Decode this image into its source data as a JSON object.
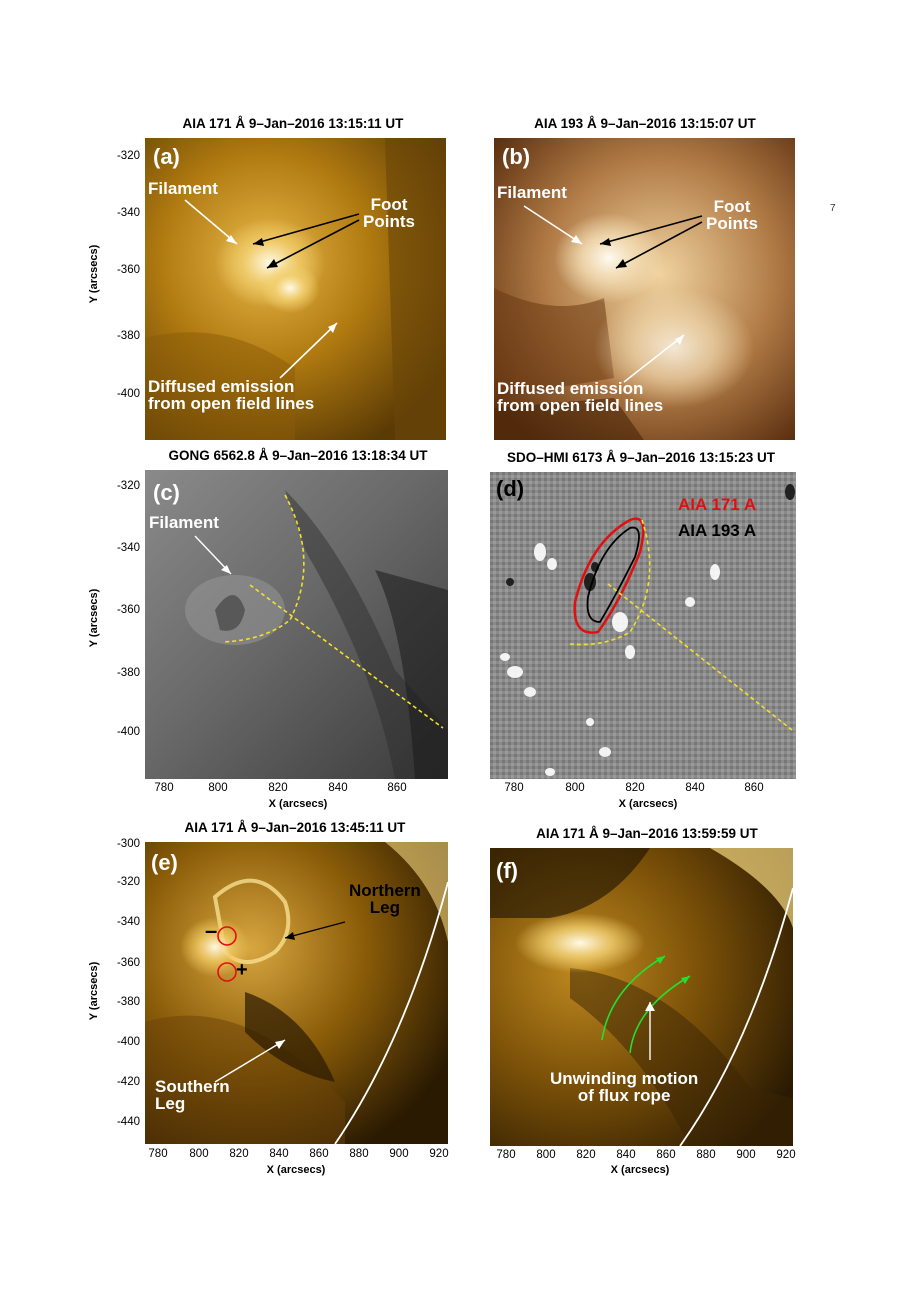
{
  "panels": {
    "a": {
      "title": "AIA 171 Å 9–Jan–2016 13:15:11 UT",
      "label": "(a)",
      "ann_filament": "Filament",
      "ann_foot1": "Foot",
      "ann_foot2": "Points",
      "ann_diff1": "Diffused emission",
      "ann_diff2": "from open field lines",
      "yticks": [
        "-320",
        "-340",
        "-360",
        "-380",
        "-400"
      ],
      "ylabel": "Y (arcsecs)"
    },
    "b": {
      "title": "AIA 193 Å 9–Jan–2016 13:15:07 UT",
      "label": "(b)",
      "ann_filament": "Filament",
      "ann_foot1": "Foot",
      "ann_foot2": "Points",
      "ann_diff1": "Diffused emission",
      "ann_diff2": "from open field lines"
    },
    "c": {
      "title": "GONG 6562.8 Å 9–Jan–2016 13:18:34 UT",
      "label": "(c)",
      "ann_filament": "Filament",
      "yticks": [
        "-320",
        "-340",
        "-360",
        "-380",
        "-400"
      ],
      "xticks": [
        "780",
        "800",
        "820",
        "840",
        "860"
      ],
      "ylabel": "Y (arcsecs)",
      "xlabel": "X (arcsecs)"
    },
    "d": {
      "title": "SDO–HMI 6173 Å 9–Jan–2016 13:15:23 UT",
      "label": "(d)",
      "legend_171": "AIA 171 A",
      "legend_193": "AIA 193 A",
      "legend_171_color": "#e01010",
      "legend_193_color": "#000000",
      "xticks": [
        "780",
        "800",
        "820",
        "840",
        "860"
      ],
      "xlabel": "X (arcsecs)"
    },
    "e": {
      "title": "AIA 171 Å 9–Jan–2016 13:45:11 UT",
      "label": "(e)",
      "ann_north1": "Northern",
      "ann_north2": "Leg",
      "ann_south1": "Southern",
      "ann_south2": "Leg",
      "minus": "–",
      "plus": "+",
      "yticks": [
        "-300",
        "-320",
        "-340",
        "-360",
        "-380",
        "-400",
        "-420",
        "-440"
      ],
      "xticks": [
        "780",
        "800",
        "820",
        "840",
        "860",
        "880",
        "900",
        "920"
      ],
      "ylabel": "Y (arcsecs)",
      "xlabel": "X (arcsecs)"
    },
    "f": {
      "title": "AIA 171 Å 9–Jan–2016 13:59:59 UT",
      "label": "(f)",
      "ann_unwind1": "Unwinding motion",
      "ann_unwind2": "of flux rope",
      "xticks": [
        "780",
        "800",
        "820",
        "840",
        "860",
        "880",
        "900",
        "920"
      ],
      "xlabel": "X (arcsecs)"
    }
  },
  "stray_mark": "7",
  "colors": {
    "aia171": "#c48a10",
    "aia193": "#a8703a",
    "yellow_dash": "#f3e02a",
    "green_arrow": "#22e030",
    "red_circle": "#e01010"
  }
}
